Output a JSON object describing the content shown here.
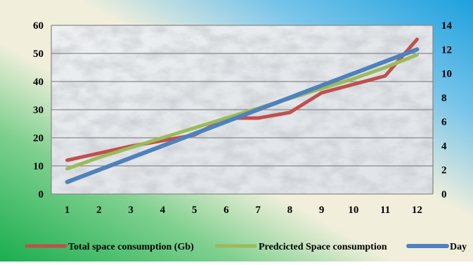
{
  "chart_data": {
    "type": "line",
    "title": "",
    "xlabel": "",
    "ylabel": "",
    "categories": [
      "1",
      "2",
      "3",
      "4",
      "5",
      "6",
      "7",
      "8",
      "9",
      "10",
      "11",
      "12"
    ],
    "y_left": {
      "ticks": [
        "0",
        "10",
        "20",
        "30",
        "40",
        "50",
        "60"
      ],
      "ylim": [
        0,
        60
      ]
    },
    "y_right": {
      "ticks": [
        "0",
        "2",
        "4",
        "6",
        "8",
        "10",
        "12",
        "14"
      ],
      "ylim": [
        0,
        14
      ]
    },
    "grid": true,
    "legend_position": "bottom",
    "series": [
      {
        "name": "Total space consumption (Gb)",
        "axis": "left",
        "color": "#c0504d",
        "values": [
          12,
          14.5,
          17,
          19,
          21,
          27,
          27,
          29,
          36,
          39,
          42,
          55
        ]
      },
      {
        "name": "Predcicted Space consumption",
        "axis": "left",
        "color": "#9bbb59",
        "values": [
          9,
          13,
          16.5,
          20,
          23.5,
          27,
          30.5,
          34,
          37.5,
          41,
          45,
          49.5
        ]
      },
      {
        "name": "Day",
        "axis": "right",
        "color": "#4f81bd",
        "values": [
          1,
          2,
          3,
          4,
          5,
          6,
          7,
          8,
          9,
          10,
          11,
          12
        ]
      }
    ]
  }
}
